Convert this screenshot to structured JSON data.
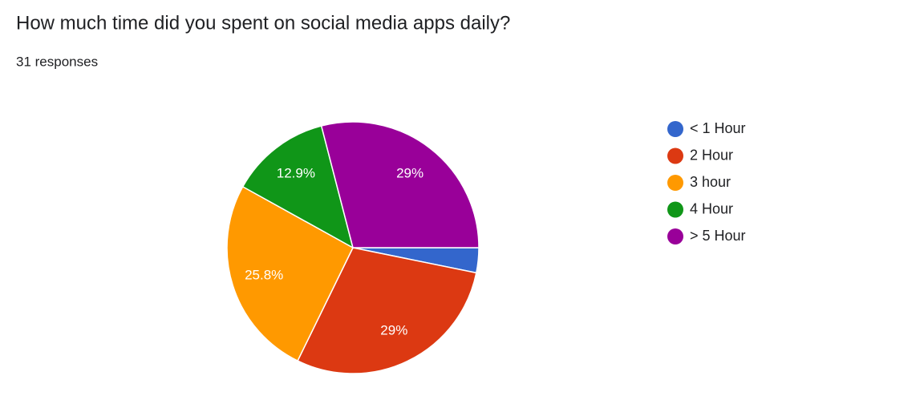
{
  "chart_data": {
    "type": "pie",
    "title": "How much time did you spent on social media apps daily?",
    "subtitle": "31 responses",
    "categories": [
      "< 1 Hour",
      "2 Hour",
      "3 hour",
      "4 Hour",
      "> 5 Hour"
    ],
    "values": [
      3.2,
      29,
      25.8,
      12.9,
      29
    ],
    "value_labels": [
      null,
      "29%",
      "25.8%",
      "12.9%",
      "29%"
    ],
    "colors": [
      "#3366cc",
      "#dc3912",
      "#ff9900",
      "#109618",
      "#990099"
    ],
    "legend": "right"
  }
}
